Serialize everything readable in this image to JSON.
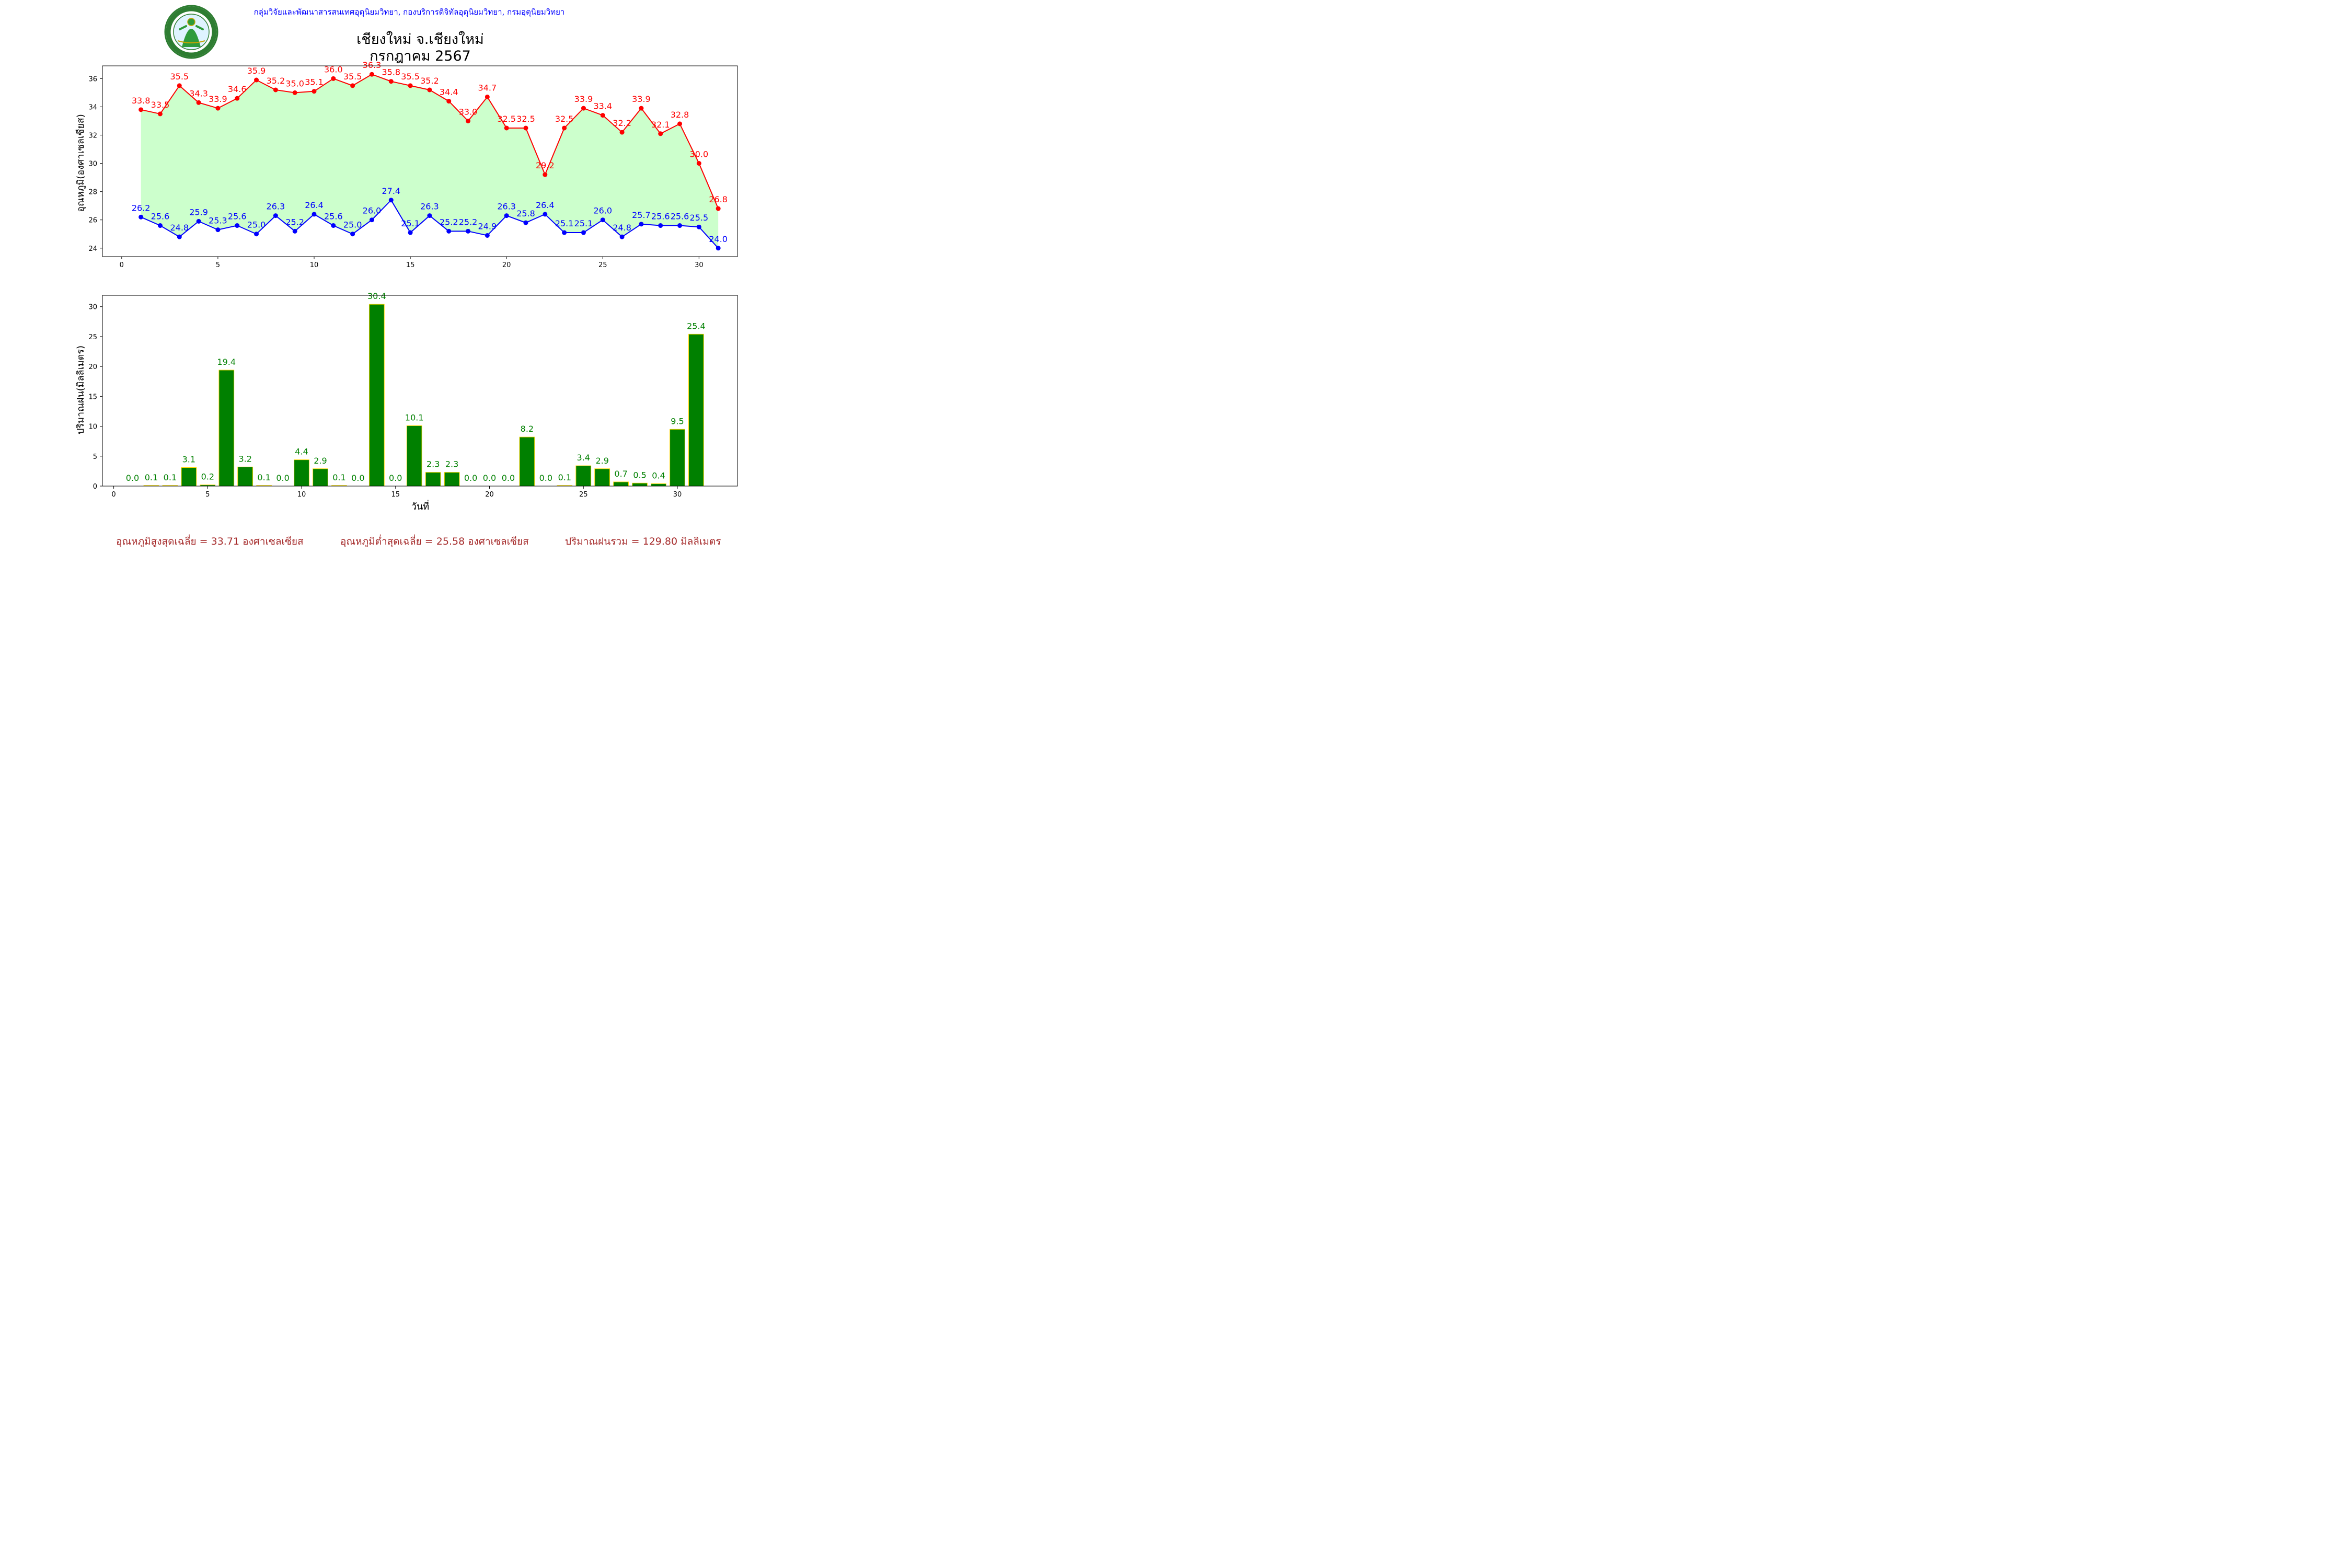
{
  "header": {
    "org_line": "กลุ่มวิจัยและพัฒนาสารสนเทศอุตุนิยมวิทยา, กองบริการดิจิทัลอุตุนิยมวิทยา, กรมอุตุนิยมวิทยา",
    "title_line1": "เชียงใหม่ จ.เชียงใหม่",
    "title_line2": "กรกฎาคม 2567",
    "logo_text": "กรมอุตุนิยมวิทยา",
    "logo_text_en": "METEOROLOGICAL DEPARTMENT"
  },
  "colors": {
    "max_temp": "#ff0000",
    "min_temp": "#0000ff",
    "fill": "#ccffcc",
    "rain_bar": "#008000",
    "rain_edge": "#ffd700",
    "rain_label": "#008000",
    "footer": "#a52a2a",
    "org": "#0000ff"
  },
  "chart_data": [
    {
      "type": "line",
      "ylabel": "อุณหภูมิ(องศาเซลเซียส)",
      "xlabel": "",
      "xlim": [
        -1,
        32
      ],
      "ylim": [
        23.4,
        36.9
      ],
      "xticks": [
        0,
        5,
        10,
        15,
        20,
        25,
        30
      ],
      "yticks": [
        24,
        26,
        28,
        30,
        32,
        34,
        36
      ],
      "x": [
        1,
        2,
        3,
        4,
        5,
        6,
        7,
        8,
        9,
        10,
        11,
        12,
        13,
        14,
        15,
        16,
        17,
        18,
        19,
        20,
        21,
        22,
        23,
        24,
        25,
        26,
        27,
        28,
        29,
        30,
        31
      ],
      "series": [
        {
          "key": "max",
          "values": [
            33.8,
            33.5,
            35.5,
            34.3,
            33.9,
            34.6,
            35.9,
            35.2,
            35.0,
            35.1,
            36.0,
            35.5,
            36.3,
            35.8,
            35.5,
            35.2,
            34.4,
            33.0,
            34.7,
            32.5,
            32.5,
            29.2,
            32.5,
            33.9,
            33.4,
            32.2,
            33.9,
            32.1,
            32.8,
            30.0,
            26.8
          ]
        },
        {
          "key": "min",
          "values": [
            26.2,
            25.6,
            24.8,
            25.9,
            25.3,
            25.6,
            25.0,
            26.3,
            25.2,
            26.4,
            25.6,
            25.0,
            26.0,
            27.4,
            25.1,
            26.3,
            25.2,
            25.2,
            24.9,
            26.3,
            25.8,
            26.4,
            25.1,
            25.1,
            26.0,
            24.8,
            25.7,
            25.6,
            25.6,
            25.5,
            24.0
          ]
        }
      ]
    },
    {
      "type": "bar",
      "ylabel": "ปริมาณฝน(มิลลิเมตร)",
      "xlabel": "วันที่",
      "xlim": [
        -0.6,
        33.2
      ],
      "ylim": [
        0,
        31.9
      ],
      "xticks": [
        0,
        5,
        10,
        15,
        20,
        25,
        30
      ],
      "yticks": [
        0,
        5,
        10,
        15,
        20,
        25,
        30
      ],
      "x": [
        1,
        2,
        3,
        4,
        5,
        6,
        7,
        8,
        9,
        10,
        11,
        12,
        13,
        14,
        15,
        16,
        17,
        18,
        19,
        20,
        21,
        22,
        23,
        24,
        25,
        26,
        27,
        28,
        29,
        30,
        31
      ],
      "values": [
        0.0,
        0.1,
        0.1,
        3.1,
        0.2,
        19.4,
        3.2,
        0.1,
        0.0,
        4.4,
        2.9,
        0.1,
        0.0,
        30.4,
        0.0,
        10.1,
        2.3,
        2.3,
        0.0,
        0.0,
        0.0,
        8.2,
        0.0,
        0.1,
        3.4,
        2.9,
        0.7,
        0.5,
        0.4,
        9.5,
        25.4
      ]
    }
  ],
  "footer": {
    "avg_max": "อุณหภูมิสูงสุดเฉลี่ย = 33.71 องศาเซลเซียส",
    "avg_min": "อุณหภูมิต่ำสุดเฉลี่ย = 25.58 องศาเซลเซียส",
    "total_rain": "ปริมาณฝนรวม = 129.80 มิลลิเมตร"
  }
}
